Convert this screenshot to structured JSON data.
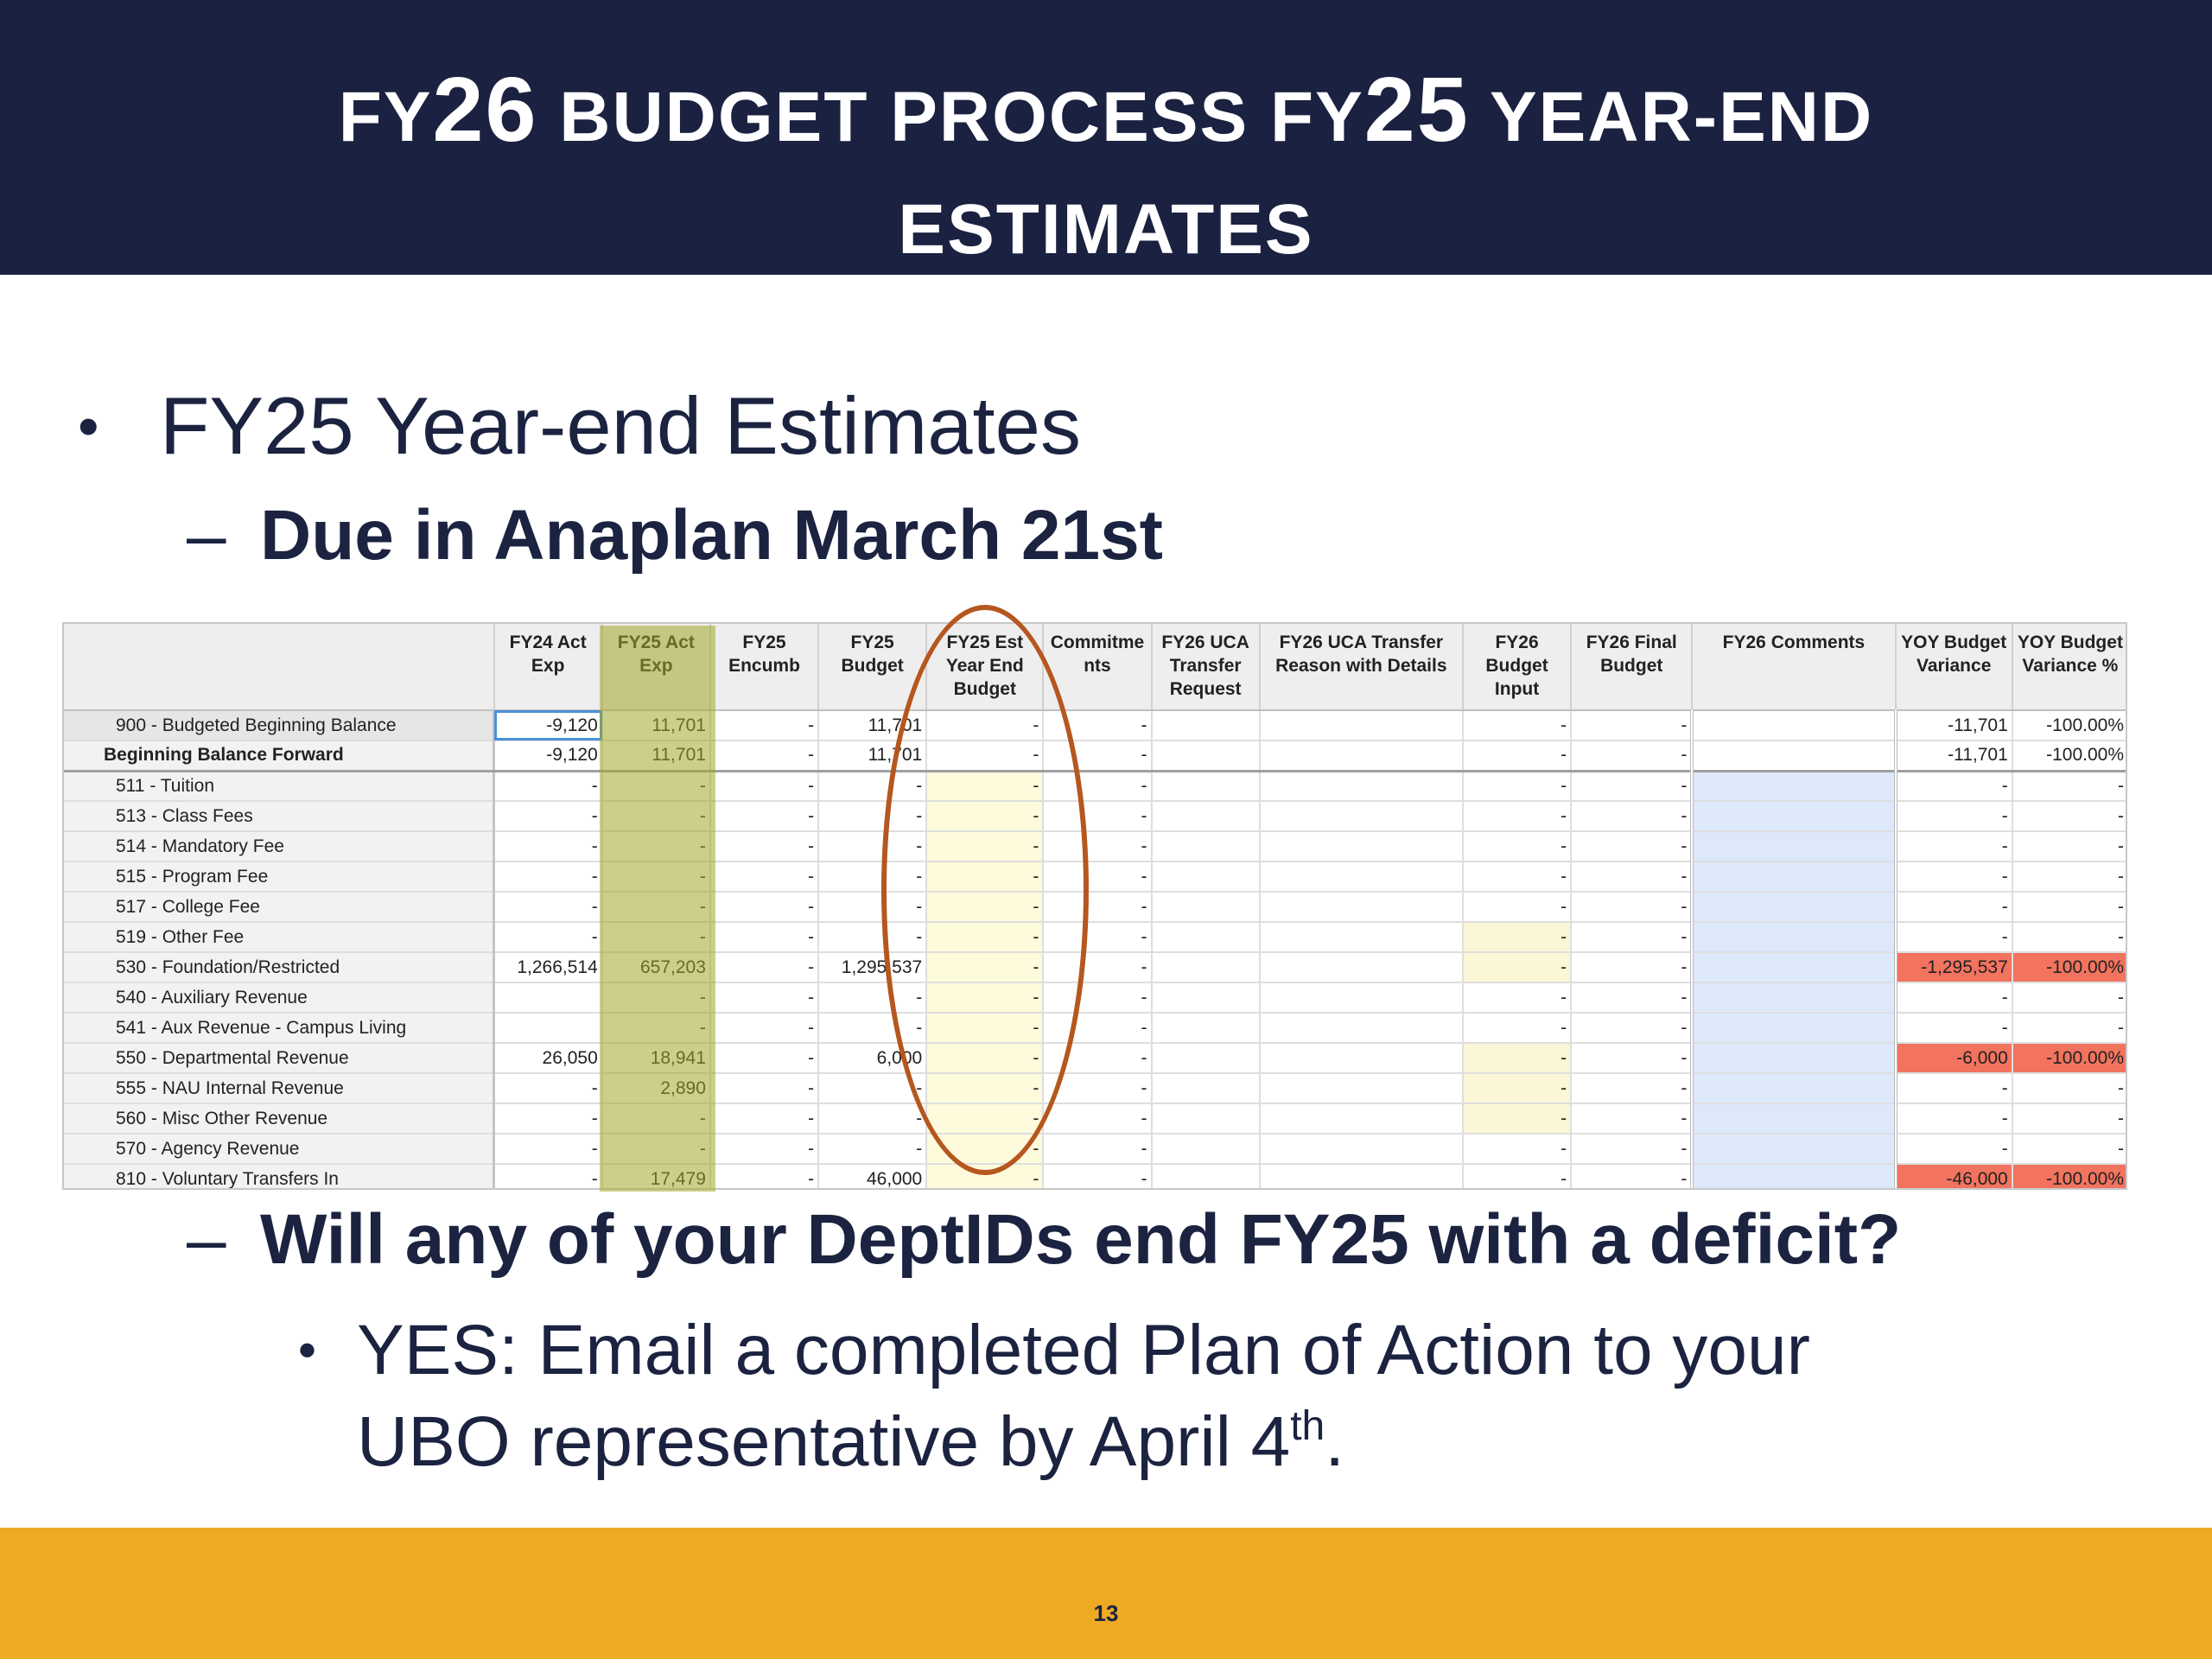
{
  "header": {
    "title_line1_parts": [
      "FY",
      "26",
      " BUDGET PROCESS FY",
      "25",
      " YEAR-END"
    ],
    "title_line2": "ESTIMATES"
  },
  "bullets": {
    "level1": "FY25 Year-end Estimates",
    "due": "Due in Anaplan March 21st",
    "deficit_question": "Will any of your DeptIDs end FY25 with a deficit?",
    "yes_line1": "YES:  Email a completed Plan of Action to your",
    "yes_line2_prefix": "UBO representative by April 4",
    "yes_line2_sup": "th",
    "yes_line2_suffix": "."
  },
  "table": {
    "columns": [
      "",
      "FY24 Act Exp",
      "FY25 Act Exp",
      "FY25 Encumb",
      "FY25 Budget",
      "FY25 Est Year End Budget",
      "Commitme nts",
      "FY26 UCA Transfer Request",
      "FY26 UCA Transfer Reason with Details",
      "FY26 Budget Input",
      "FY26 Final Budget",
      "FY26 Comments",
      "YOY Budget Variance",
      "YOY Budget Variance %"
    ],
    "rows": [
      {
        "label": "900 - Budgeted Beginning Balance",
        "cells": [
          "-9,120",
          "11,701",
          "-",
          "11,701",
          "-",
          "-",
          "",
          "",
          "-",
          "-",
          "",
          "-11,701",
          "-100.00%"
        ]
      },
      {
        "label": "Beginning Balance Forward",
        "cells": [
          "-9,120",
          "11,701",
          "-",
          "11,701",
          "-",
          "-",
          "",
          "",
          "-",
          "-",
          "",
          "-11,701",
          "-100.00%"
        ]
      },
      {
        "label": "511 - Tuition",
        "cells": [
          "-",
          "-",
          "-",
          "-",
          "-",
          "-",
          "",
          "",
          "-",
          "-",
          "",
          "-",
          "-"
        ]
      },
      {
        "label": "513 - Class Fees",
        "cells": [
          "-",
          "-",
          "-",
          "-",
          "-",
          "-",
          "",
          "",
          "-",
          "-",
          "",
          "-",
          "-"
        ]
      },
      {
        "label": "514 - Mandatory Fee",
        "cells": [
          "-",
          "-",
          "-",
          "-",
          "-",
          "-",
          "",
          "",
          "-",
          "-",
          "",
          "-",
          "-"
        ]
      },
      {
        "label": "515 - Program Fee",
        "cells": [
          "-",
          "-",
          "-",
          "-",
          "-",
          "-",
          "",
          "",
          "-",
          "-",
          "",
          "-",
          "-"
        ]
      },
      {
        "label": "517 - College Fee",
        "cells": [
          "-",
          "-",
          "-",
          "-",
          "-",
          "-",
          "",
          "",
          "-",
          "-",
          "",
          "-",
          "-"
        ]
      },
      {
        "label": "519 - Other Fee",
        "cells": [
          "-",
          "-",
          "-",
          "-",
          "-",
          "-",
          "",
          "",
          "-",
          "-",
          "",
          "-",
          "-"
        ]
      },
      {
        "label": "530 - Foundation/Restricted",
        "cells": [
          "1,266,514",
          "657,203",
          "-",
          "1,295,537",
          "-",
          "-",
          "",
          "",
          "-",
          "-",
          "",
          "-1,295,537",
          "-100.00%"
        ]
      },
      {
        "label": "540 - Auxiliary Revenue",
        "cells": [
          "",
          "-",
          "-",
          "-",
          "-",
          "-",
          "",
          "",
          "-",
          "-",
          "",
          "-",
          "-"
        ]
      },
      {
        "label": "541 - Aux Revenue - Campus Living",
        "cells": [
          "",
          "-",
          "-",
          "-",
          "-",
          "-",
          "",
          "",
          "-",
          "-",
          "",
          "-",
          "-"
        ]
      },
      {
        "label": "550 - Departmental Revenue",
        "cells": [
          "26,050",
          "18,941",
          "-",
          "6,000",
          "-",
          "-",
          "",
          "",
          "-",
          "-",
          "",
          "-6,000",
          "-100.00%"
        ]
      },
      {
        "label": "555 - NAU Internal Revenue",
        "cells": [
          "-",
          "2,890",
          "-",
          "-",
          "-",
          "-",
          "",
          "",
          "-",
          "-",
          "",
          "-",
          "-"
        ]
      },
      {
        "label": "560 - Misc Other Revenue",
        "cells": [
          "-",
          "-",
          "-",
          "-",
          "-",
          "-",
          "",
          "",
          "-",
          "-",
          "",
          "-",
          "-"
        ]
      },
      {
        "label": "570 - Agency Revenue",
        "cells": [
          "-",
          "-",
          "-",
          "-",
          "-",
          "-",
          "",
          "",
          "-",
          "-",
          "",
          "-",
          "-"
        ]
      },
      {
        "label": "810 - Voluntary Transfers In",
        "cells": [
          "-",
          "17,479",
          "-",
          "46,000",
          "-",
          "-",
          "",
          "",
          "-",
          "-",
          "",
          "-46,000",
          "-100.00%"
        ]
      }
    ],
    "highlight_colors": {
      "est_year_end": "#fefbdc",
      "final_budget": "#dde8fb",
      "budget_input": "#fbf7d6",
      "negative_variance": "#f2735e",
      "highlighter_marker": "#a0a828",
      "oval_annotation": "#b5571e"
    }
  },
  "footer": {
    "page_number": "13",
    "color": "#edaa22"
  },
  "colors": {
    "header_bg": "#1b2140",
    "text": "#1b2340"
  }
}
